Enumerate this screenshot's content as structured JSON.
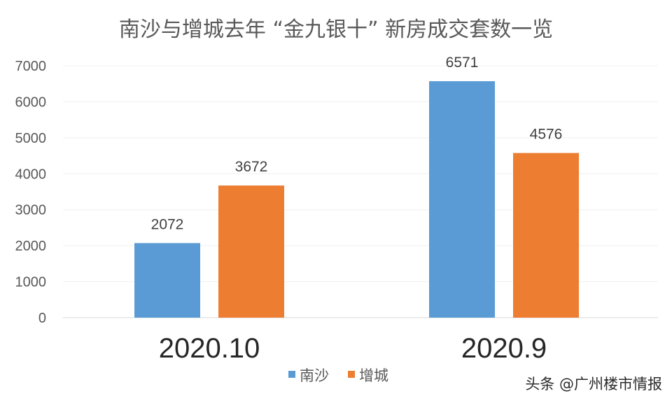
{
  "chart_data": {
    "type": "bar",
    "title": "南沙与增城去年 “金九银十” 新房成交套数一览",
    "categories": [
      "2020.10",
      "2020.9"
    ],
    "series": [
      {
        "name": "南沙",
        "values": [
          2072,
          6571
        ],
        "color": "#5b9bd5"
      },
      {
        "name": "增城",
        "values": [
          3672,
          4576
        ],
        "color": "#ed7d31"
      }
    ],
    "yticks": [
      "0",
      "1000",
      "2000",
      "3000",
      "4000",
      "5000",
      "6000",
      "7000"
    ],
    "ylim": [
      0,
      7000
    ],
    "grid": true,
    "legend": "bottom"
  },
  "watermark": "头条 @广州楼市情报"
}
